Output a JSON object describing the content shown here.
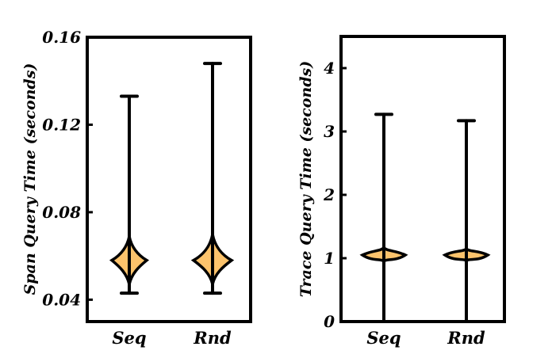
{
  "chart_data": [
    {
      "type": "violin",
      "ylabel": "Span Query Time (seconds)",
      "categories": [
        "Seq",
        "Rnd"
      ],
      "ylim": [
        0.03,
        0.16
      ],
      "yticks": [
        "0.04",
        "0.08",
        "0.12",
        "0.16"
      ],
      "ytick_values": [
        0.04,
        0.08,
        0.12,
        0.16
      ],
      "series": [
        {
          "name": "Seq",
          "min": 0.043,
          "max": 0.133,
          "mode": 0.058,
          "body_low": 0.047,
          "body_high": 0.069,
          "halfwidth": 22
        },
        {
          "name": "Rnd",
          "min": 0.043,
          "max": 0.148,
          "mode": 0.058,
          "body_low": 0.047,
          "body_high": 0.07,
          "halfwidth": 24
        }
      ],
      "fill_color": "#fcc36c"
    },
    {
      "type": "violin",
      "ylabel": "Trace Query Time (seconds)",
      "categories": [
        "Seq",
        "Rnd"
      ],
      "ylim": [
        0,
        4.5
      ],
      "yticks": [
        "0",
        "1",
        "2",
        "3",
        "4"
      ],
      "ytick_values": [
        0,
        1,
        2,
        3,
        4
      ],
      "series": [
        {
          "name": "Seq",
          "min": 0.0,
          "max": 3.27,
          "mode": 1.05,
          "body_low": 0.95,
          "body_high": 1.17,
          "halfwidth": 27
        },
        {
          "name": "Rnd",
          "min": 0.0,
          "max": 3.17,
          "mode": 1.05,
          "body_low": 0.96,
          "body_high": 1.15,
          "halfwidth": 27
        }
      ],
      "fill_color": "#fcc36c"
    }
  ]
}
